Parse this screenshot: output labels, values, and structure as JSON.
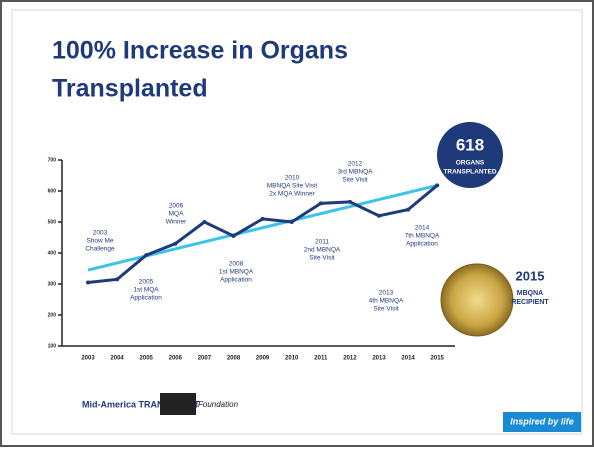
{
  "title": "100% Increase in Organs Transplanted",
  "chart_data": {
    "type": "line",
    "categories": [
      "2003",
      "2004",
      "2005",
      "2006",
      "2007",
      "2008",
      "2009",
      "2010",
      "2011",
      "2012",
      "2013",
      "2014",
      "2015"
    ],
    "series": [
      {
        "color": "#1f3a7a",
        "values": [
          305,
          315,
          393,
          430,
          500,
          455,
          510,
          500,
          560,
          565,
          520,
          540,
          618
        ]
      }
    ],
    "trend": {
      "color": "#3cc3ea",
      "values": [
        345,
        618
      ]
    },
    "ylim": [
      100,
      700
    ],
    "yticks": [
      100,
      200,
      300,
      400,
      500,
      600,
      700
    ],
    "annotations": [
      {
        "lines": [
          "2003",
          "Show Me",
          "Challenge"
        ]
      },
      {
        "lines": [
          "2005",
          "1st MQA",
          "Application"
        ]
      },
      {
        "lines": [
          "2006",
          "MQA",
          "Winner"
        ]
      },
      {
        "lines": [
          "2008",
          "1st MBNQA",
          "Application"
        ]
      },
      {
        "lines": [
          "2010",
          "MBNQA Site Visit",
          "2x MQA Winner"
        ]
      },
      {
        "lines": [
          "2011",
          "2nd MBNQA",
          "Site Visit"
        ]
      },
      {
        "lines": [
          "2012",
          "3rd MBNQA",
          "Site Visit"
        ]
      },
      {
        "lines": [
          "2013",
          "4th MBNQA",
          "Site Visit"
        ]
      },
      {
        "lines": [
          "2014",
          "7th MBNQA",
          "Application"
        ]
      }
    ]
  },
  "badge": {
    "number": "618",
    "lines": [
      "ORGANS",
      "TRANSPLANTED"
    ]
  },
  "award": {
    "year": "2015",
    "lines": [
      "MBQNA",
      "RECIPIENT"
    ]
  },
  "logos": [
    "Mid-America TRANSPLANT",
    "Foundation"
  ],
  "tagline": "Inspired by life"
}
